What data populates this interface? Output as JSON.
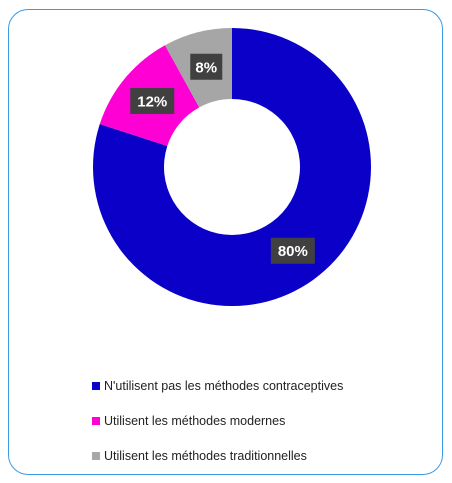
{
  "chart_data": {
    "type": "pie",
    "donut": true,
    "grid": false,
    "legend_placement": "bottom",
    "slices": [
      {
        "name": "N'utilisent pas les méthodes contraceptives",
        "value": 80,
        "label": "80%",
        "color": "#0a00c8"
      },
      {
        "name": "Utilisent les méthodes modernes",
        "value": 12,
        "label": "12%",
        "color": "#ff00d4"
      },
      {
        "name": "Utilisent les méthodes traditionnelles",
        "value": 8,
        "label": "8%",
        "color": "#a6a6a6"
      }
    ],
    "label_box_color": "#404040"
  }
}
